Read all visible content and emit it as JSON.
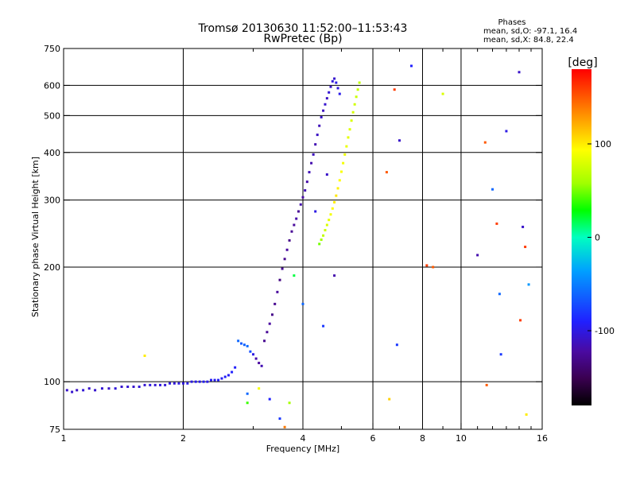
{
  "chart_data": {
    "type": "scatter",
    "title": "Tromsø 20130630 11:52:00–11:53:43",
    "subtitle": "RwPretec (Bp)",
    "info": {
      "heading": "Phases",
      "line_o": "mean, sd,O: -97.1, 16.4",
      "line_x": "mean, sd,X:  84.8, 22.4"
    },
    "xlabel": "Frequency [MHz]",
    "ylabel": "Stationary phase Virtual Height [km]",
    "xscale": "log",
    "yscale": "log",
    "xlim": [
      1,
      16
    ],
    "ylim": [
      75,
      750
    ],
    "xticks": [
      1,
      2,
      4,
      6,
      8,
      10,
      16
    ],
    "yticks": [
      75,
      100,
      200,
      300,
      400,
      500,
      600,
      750
    ],
    "xgrid": [
      2,
      4,
      6,
      8,
      10
    ],
    "ygrid": [
      100,
      200,
      300,
      400,
      500,
      600
    ],
    "grid": true,
    "colorbar": {
      "label": "[deg]",
      "range": [
        -180,
        180
      ],
      "ticks": [
        -100,
        0,
        100
      ]
    },
    "series": [
      {
        "trace": "base-layer",
        "points": [
          [
            1.02,
            95,
            -110
          ],
          [
            1.05,
            94,
            -108
          ],
          [
            1.08,
            95,
            -112
          ],
          [
            1.12,
            95,
            -105
          ],
          [
            1.16,
            96,
            -110
          ],
          [
            1.2,
            95,
            -108
          ],
          [
            1.25,
            96,
            -106
          ],
          [
            1.3,
            96,
            -110
          ],
          [
            1.35,
            96,
            -104
          ],
          [
            1.4,
            97,
            -108
          ],
          [
            1.45,
            97,
            -106
          ],
          [
            1.5,
            97,
            -109
          ],
          [
            1.55,
            97,
            -104
          ],
          [
            1.6,
            98,
            -107
          ],
          [
            1.65,
            98,
            -102
          ],
          [
            1.7,
            98,
            -106
          ],
          [
            1.75,
            98,
            -103
          ],
          [
            1.8,
            98,
            -105
          ],
          [
            1.85,
            99,
            -101
          ],
          [
            1.9,
            99,
            -104
          ],
          [
            1.95,
            99,
            -100
          ],
          [
            2.0,
            99,
            -103
          ],
          [
            2.05,
            99,
            -98
          ],
          [
            2.1,
            100,
            -101
          ],
          [
            2.15,
            100,
            -97
          ],
          [
            2.2,
            100,
            -99
          ],
          [
            2.25,
            100,
            -95
          ],
          [
            2.3,
            100,
            -98
          ],
          [
            2.35,
            101,
            -94
          ],
          [
            2.4,
            101,
            -96
          ],
          [
            2.45,
            101,
            -93
          ],
          [
            2.5,
            102,
            -95
          ],
          [
            2.55,
            103,
            -92
          ],
          [
            2.6,
            104,
            -94
          ],
          [
            2.65,
            106,
            -90
          ],
          [
            2.7,
            109,
            -92
          ]
        ]
      },
      {
        "trace": "o-mode",
        "points": [
          [
            2.75,
            128,
            -60
          ],
          [
            2.8,
            126,
            -65
          ],
          [
            2.85,
            125,
            -62
          ],
          [
            2.9,
            124,
            -58
          ],
          [
            2.95,
            120,
            -70
          ],
          [
            3.0,
            118,
            -100
          ],
          [
            3.05,
            115,
            -120
          ],
          [
            3.1,
            112,
            -125
          ],
          [
            3.15,
            110,
            -118
          ],
          [
            3.2,
            128,
            -130
          ],
          [
            3.25,
            135,
            -128
          ],
          [
            3.3,
            142,
            -125
          ],
          [
            3.35,
            150,
            -132
          ],
          [
            3.4,
            160,
            -130
          ],
          [
            3.45,
            172,
            -126
          ],
          [
            3.5,
            185,
            -134
          ],
          [
            3.55,
            198,
            -128
          ],
          [
            3.6,
            210,
            -130
          ],
          [
            3.65,
            222,
            -125
          ],
          [
            3.7,
            235,
            -132
          ],
          [
            3.75,
            248,
            -128
          ],
          [
            3.8,
            258,
            -126
          ],
          [
            3.85,
            268,
            -122
          ],
          [
            3.9,
            280,
            -128
          ],
          [
            3.95,
            292,
            -120
          ],
          [
            4.0,
            305,
            -124
          ],
          [
            4.05,
            318,
            -118
          ],
          [
            4.1,
            335,
            -122
          ],
          [
            4.15,
            355,
            -116
          ],
          [
            4.2,
            375,
            -120
          ],
          [
            4.25,
            395,
            -114
          ],
          [
            4.3,
            420,
            -118
          ],
          [
            4.35,
            445,
            -112
          ],
          [
            4.4,
            470,
            -116
          ],
          [
            4.45,
            495,
            -110
          ],
          [
            4.5,
            515,
            -114
          ],
          [
            4.55,
            535,
            -108
          ],
          [
            4.6,
            555,
            -112
          ],
          [
            4.65,
            575,
            -106
          ],
          [
            4.7,
            595,
            -110
          ],
          [
            4.75,
            615,
            -104
          ],
          [
            4.8,
            625,
            -108
          ],
          [
            4.85,
            610,
            -100
          ],
          [
            4.9,
            590,
            -104
          ],
          [
            4.95,
            570,
            -98
          ]
        ]
      },
      {
        "trace": "x-mode",
        "points": [
          [
            4.4,
            230,
            50
          ],
          [
            4.45,
            236,
            60
          ],
          [
            4.5,
            242,
            70
          ],
          [
            4.55,
            250,
            75
          ],
          [
            4.6,
            258,
            80
          ],
          [
            4.65,
            266,
            85
          ],
          [
            4.7,
            275,
            90
          ],
          [
            4.75,
            285,
            95
          ],
          [
            4.8,
            296,
            100
          ],
          [
            4.85,
            308,
            102
          ],
          [
            4.9,
            322,
            98
          ],
          [
            4.95,
            338,
            95
          ],
          [
            5.0,
            356,
            92
          ],
          [
            5.05,
            375,
            90
          ],
          [
            5.1,
            395,
            88
          ],
          [
            5.15,
            415,
            86
          ],
          [
            5.2,
            438,
            84
          ],
          [
            5.25,
            460,
            82
          ],
          [
            5.3,
            485,
            80
          ],
          [
            5.35,
            510,
            78
          ],
          [
            5.4,
            535,
            76
          ],
          [
            5.45,
            560,
            74
          ],
          [
            5.5,
            585,
            72
          ],
          [
            5.55,
            610,
            70
          ]
        ]
      },
      {
        "trace": "scattered",
        "points": [
          [
            1.6,
            117,
            100
          ],
          [
            2.9,
            93,
            -60
          ],
          [
            2.9,
            88,
            40
          ],
          [
            3.1,
            96,
            90
          ],
          [
            3.3,
            90,
            -90
          ],
          [
            3.5,
            80,
            -80
          ],
          [
            3.6,
            76,
            140
          ],
          [
            3.7,
            88,
            60
          ],
          [
            3.8,
            190,
            20
          ],
          [
            4.0,
            160,
            -60
          ],
          [
            4.3,
            280,
            -100
          ],
          [
            4.6,
            350,
            -110
          ],
          [
            4.8,
            190,
            -120
          ],
          [
            4.5,
            140,
            -80
          ],
          [
            6.5,
            355,
            150
          ],
          [
            6.6,
            90,
            110
          ],
          [
            6.8,
            585,
            160
          ],
          [
            6.9,
            125,
            -80
          ],
          [
            7.0,
            430,
            -110
          ],
          [
            7.5,
            675,
            -90
          ],
          [
            8.2,
            202,
            160
          ],
          [
            8.5,
            200,
            150
          ],
          [
            9.0,
            570,
            80
          ],
          [
            11.0,
            215,
            -120
          ],
          [
            11.5,
            425,
            150
          ],
          [
            11.6,
            98,
            150
          ],
          [
            12.0,
            320,
            -60
          ],
          [
            12.3,
            260,
            160
          ],
          [
            12.5,
            170,
            -60
          ],
          [
            12.6,
            118,
            -80
          ],
          [
            13.0,
            455,
            -100
          ],
          [
            14.0,
            650,
            -110
          ],
          [
            14.1,
            145,
            160
          ],
          [
            14.3,
            255,
            -110
          ],
          [
            14.5,
            226,
            160
          ],
          [
            14.6,
            82,
            100
          ],
          [
            14.8,
            180,
            -40
          ]
        ]
      }
    ]
  }
}
